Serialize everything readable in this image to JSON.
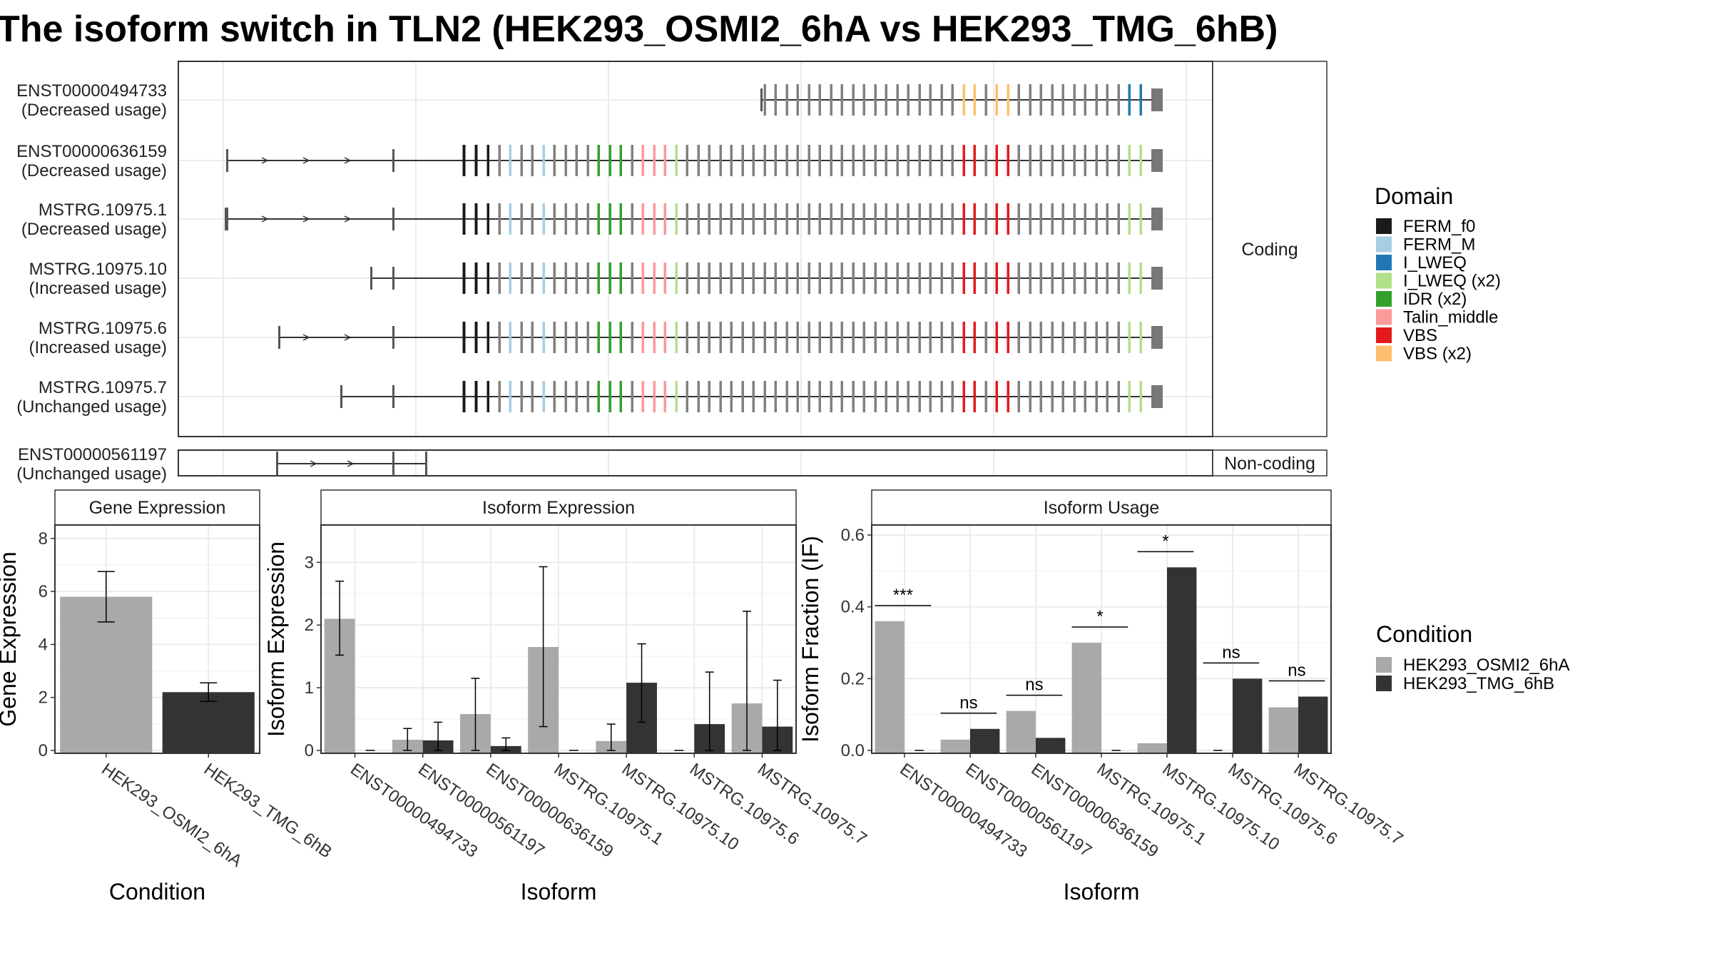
{
  "title": "The isoform switch in TLN2 (HEK293_OSMI2_6hA vs HEK293_TMG_6hB)",
  "colors": {
    "FERM_f0": "#1a1a1a",
    "FERM_M": "#a6cee3",
    "I_LWEQ": "#1f78b4",
    "I_LWEQ (x2)": "#b2df8a",
    "IDR (x2)": "#33a02c",
    "Talin_middle": "#fb9a99",
    "VBS": "#e31a1c",
    "VBS (x2)": "#fdbf6f",
    "exon": "#808080",
    "cond_A": "#a9a9a9",
    "cond_B": "#333333"
  },
  "structure": {
    "coding_label": "Coding",
    "noncoding_label": "Non-coding",
    "transcripts": [
      {
        "id": "ENST00000494733",
        "usage": "(Decreased usage)",
        "group": "coding"
      },
      {
        "id": "ENST00000636159",
        "usage": "(Decreased usage)",
        "group": "coding"
      },
      {
        "id": "MSTRG.10975.1",
        "usage": "(Decreased usage)",
        "group": "coding"
      },
      {
        "id": "MSTRG.10975.10",
        "usage": "(Increased usage)",
        "group": "coding"
      },
      {
        "id": "MSTRG.10975.6",
        "usage": "(Increased usage)",
        "group": "coding"
      },
      {
        "id": "MSTRG.10975.7",
        "usage": "(Unchanged usage)",
        "group": "coding"
      },
      {
        "id": "ENST00000561197",
        "usage": "(Unchanged usage)",
        "group": "noncoding"
      }
    ]
  },
  "domain_legend": {
    "title": "Domain",
    "items": [
      "FERM_f0",
      "FERM_M",
      "I_LWEQ",
      "I_LWEQ (x2)",
      "IDR (x2)",
      "Talin_middle",
      "VBS",
      "VBS (x2)"
    ]
  },
  "condition_legend": {
    "title": "Condition",
    "items": [
      "HEK293_OSMI2_6hA",
      "HEK293_TMG_6hB"
    ]
  },
  "chart_data": [
    {
      "type": "bar",
      "title": "Gene Expression",
      "xlabel": "Condition",
      "ylabel": "Gene Expression",
      "categories": [
        "HEK293_OSMI2_6hA",
        "HEK293_TMG_6hB"
      ],
      "values": [
        5.8,
        2.2
      ],
      "errors": [
        [
          4.85,
          6.75
        ],
        [
          1.85,
          2.55
        ]
      ],
      "yticks": [
        "0",
        "2",
        "4",
        "6",
        "8"
      ],
      "ylim": [
        0,
        8.4
      ]
    },
    {
      "type": "bar",
      "title": "Isoform Expression",
      "xlabel": "Isoform",
      "ylabel": "Isoform Expression",
      "categories": [
        "ENST00000494733",
        "ENST00000561197",
        "ENST00000636159",
        "MSTRG.10975.1",
        "MSTRG.10975.10",
        "MSTRG.10975.6",
        "MSTRG.10975.7"
      ],
      "series": [
        {
          "name": "HEK293_OSMI2_6hA",
          "values": [
            2.1,
            0.17,
            0.58,
            1.65,
            0.15,
            0.0,
            0.75
          ],
          "errors": [
            [
              1.52,
              2.7
            ],
            [
              0.0,
              0.35
            ],
            [
              0.0,
              1.15
            ],
            [
              0.38,
              2.93
            ],
            [
              0.0,
              0.42
            ],
            [
              0.0,
              0.0
            ],
            [
              0.0,
              2.22
            ]
          ]
        },
        {
          "name": "HEK293_TMG_6hB",
          "values": [
            0.0,
            0.16,
            0.07,
            0.0,
            1.08,
            0.42,
            0.38
          ],
          "errors": [
            [
              0.0,
              0.0
            ],
            [
              0.0,
              0.45
            ],
            [
              0.0,
              0.2
            ],
            [
              0.0,
              0.0
            ],
            [
              0.45,
              1.7
            ],
            [
              0.0,
              1.25
            ],
            [
              0.0,
              1.12
            ]
          ]
        }
      ],
      "yticks": [
        "0",
        "1",
        "2",
        "3"
      ],
      "ylim": [
        0,
        3.55
      ]
    },
    {
      "type": "bar",
      "title": "Isoform Usage",
      "xlabel": "Isoform",
      "ylabel": "Isoform Fraction (IF)",
      "categories": [
        "ENST00000494733",
        "ENST00000561197",
        "ENST00000636159",
        "MSTRG.10975.1",
        "MSTRG.10975.10",
        "MSTRG.10975.6",
        "MSTRG.10975.7"
      ],
      "series": [
        {
          "name": "HEK293_OSMI2_6hA",
          "values": [
            0.36,
            0.03,
            0.11,
            0.3,
            0.02,
            0.0,
            0.12
          ]
        },
        {
          "name": "HEK293_TMG_6hB",
          "values": [
            0.0,
            0.06,
            0.035,
            0.0,
            0.51,
            0.2,
            0.15
          ]
        }
      ],
      "significance": [
        "***",
        "ns",
        "ns",
        "*",
        "*",
        "ns",
        "ns"
      ],
      "yticks": [
        "0.0",
        "0.2",
        "0.4",
        "0.6"
      ],
      "ylim": [
        0,
        0.62
      ]
    }
  ]
}
